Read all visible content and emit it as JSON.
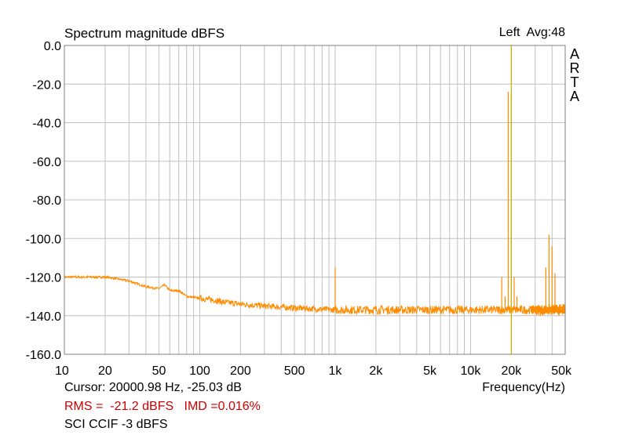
{
  "chart_data": {
    "type": "line",
    "title": "Spectrum magnitude dBFS",
    "channel_label": "Left",
    "average_label": "Avg:48",
    "brand_letters": [
      "A",
      "R",
      "T",
      "A"
    ],
    "xlabel": "Frequency(Hz)",
    "ylabel": "",
    "x_scale": "log",
    "xlim": [
      10,
      50000
    ],
    "ylim": [
      -160,
      0
    ],
    "grid": true,
    "y_ticks": [
      {
        "v": 0,
        "label": "0.0"
      },
      {
        "v": -20,
        "label": "-20.0"
      },
      {
        "v": -40,
        "label": "-40.0"
      },
      {
        "v": -60,
        "label": "-60.0"
      },
      {
        "v": -80,
        "label": "-80.0"
      },
      {
        "v": -100,
        "label": "-100.0"
      },
      {
        "v": -120,
        "label": "-120.0"
      },
      {
        "v": -140,
        "label": "-140.0"
      },
      {
        "v": -160,
        "label": "-160.0"
      }
    ],
    "x_ticks": [
      {
        "v": 10,
        "label": "10"
      },
      {
        "v": 20,
        "label": "20"
      },
      {
        "v": 50,
        "label": "50"
      },
      {
        "v": 100,
        "label": "100"
      },
      {
        "v": 200,
        "label": "200"
      },
      {
        "v": 500,
        "label": "500"
      },
      {
        "v": 1000,
        "label": "1k"
      },
      {
        "v": 2000,
        "label": "2k"
      },
      {
        "v": 5000,
        "label": "5k"
      },
      {
        "v": 10000,
        "label": "10k"
      },
      {
        "v": 20000,
        "label": "20k"
      },
      {
        "v": 50000,
        "label": "50k"
      }
    ],
    "series": [
      {
        "color": "#ff8c00",
        "noise_floor": [
          [
            10,
            -120
          ],
          [
            20,
            -120
          ],
          [
            25,
            -121
          ],
          [
            30,
            -122
          ],
          [
            40,
            -125
          ],
          [
            50,
            -126
          ],
          [
            55,
            -124
          ],
          [
            60,
            -127
          ],
          [
            70,
            -127
          ],
          [
            80,
            -130
          ],
          [
            100,
            -131
          ],
          [
            130,
            -132
          ],
          [
            150,
            -133
          ],
          [
            200,
            -134
          ],
          [
            300,
            -135
          ],
          [
            500,
            -136
          ],
          [
            1000,
            -137
          ],
          [
            2000,
            -137
          ],
          [
            5000,
            -137
          ],
          [
            10000,
            -137
          ],
          [
            20000,
            -137
          ],
          [
            50000,
            -137
          ]
        ],
        "peaks": [
          {
            "f": 1000,
            "db": -115
          },
          {
            "f": 17000,
            "db": -120
          },
          {
            "f": 18000,
            "db": -130
          },
          {
            "f": 19000,
            "db": -24
          },
          {
            "f": 20000,
            "db": -25
          },
          {
            "f": 21000,
            "db": -120
          },
          {
            "f": 22000,
            "db": -130
          },
          {
            "f": 36000,
            "db": -115
          },
          {
            "f": 38000,
            "db": -98
          },
          {
            "f": 40000,
            "db": -104
          },
          {
            "f": 42000,
            "db": -118
          }
        ]
      }
    ],
    "cursor": {
      "x": 20000.98,
      "color": "#c8b400"
    }
  },
  "readout": {
    "cursor_text": "Cursor: 20000.98 Hz, -25.03 dB",
    "stats_text": "RMS =  -21.2 dBFS   IMD =0.016%",
    "stats_color": "#cc0000",
    "note_text": "SCI CCIF -3 dBFS"
  },
  "colors": {
    "grid": "#c0c0c0",
    "frame": "#808080",
    "trace": "#ff8c00",
    "cursor": "#c8b400"
  }
}
